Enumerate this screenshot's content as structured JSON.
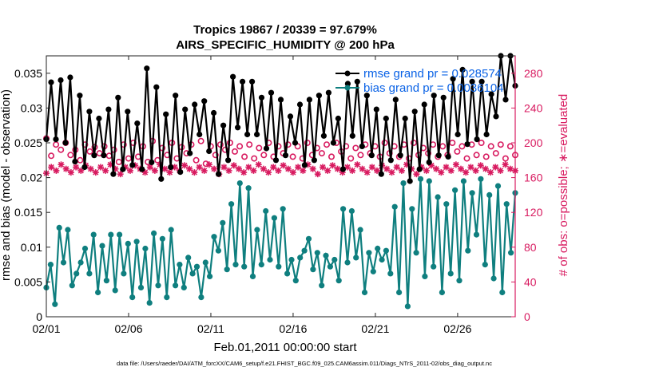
{
  "chart_data": {
    "type": "line",
    "title_line1": "Tropics 19867 / 20339 = 97.679%",
    "title_line2": "AIRS_SPECIFIC_HUMIDITY @ 200 hPa",
    "xlabel": "Feb.01,2011 00:00:00 start",
    "ylabel": "rmse and bias (model - observation)",
    "ylabel_right": "# of obs: o=possible; ∗=evaluated",
    "x_tick_labels": [
      "02/01",
      "02/06",
      "02/11",
      "02/16",
      "02/21",
      "02/26"
    ],
    "x_tick_days": [
      1,
      6,
      11,
      16,
      21,
      26
    ],
    "xlim": [
      1,
      29.5
    ],
    "ylim": [
      0,
      0.0375
    ],
    "y_ticks": [
      0,
      0.005,
      0.01,
      0.015,
      0.02,
      0.025,
      0.03,
      0.035
    ],
    "y_tick_labels": [
      "0",
      "0.005",
      "0.01",
      "0.015",
      "0.02",
      "0.025",
      "0.03",
      "0.035"
    ],
    "ylim_right": [
      0,
      300
    ],
    "y_ticks_right": [
      0,
      40,
      80,
      120,
      160,
      200,
      240,
      280
    ],
    "y_tick_labels_right": [
      "0",
      "40",
      "80",
      "120",
      "160",
      "200",
      "240",
      "280"
    ],
    "colors": {
      "rmse": "#000000",
      "bias": "#0f7f7f",
      "obs": "#d81b60",
      "legend_text": "#0b63e6"
    },
    "legend": [
      {
        "name": "rmse",
        "label": "rmse grand pr = 0.028574"
      },
      {
        "name": "bias",
        "label": "bias grand pr = 0.0036104"
      }
    ],
    "series": [
      {
        "name": "rmse",
        "values": [
          0.0255,
          0.0337,
          0.0255,
          0.034,
          0.025,
          0.0344,
          0.0223,
          0.0318,
          0.0215,
          0.0295,
          0.0232,
          0.0285,
          0.0232,
          0.0298,
          0.0205,
          0.0315,
          0.0212,
          0.0295,
          0.0218,
          0.0278,
          0.0212,
          0.0357,
          0.0222,
          0.033,
          0.0198,
          0.0291,
          0.0215,
          0.0318,
          0.0208,
          0.0298,
          0.0235,
          0.0305,
          0.0262,
          0.031,
          0.0238,
          0.0293,
          0.0205,
          0.0275,
          0.0225,
          0.0345,
          0.0272,
          0.0338,
          0.0262,
          0.0338,
          0.0262,
          0.0315,
          0.0242,
          0.0322,
          0.0225,
          0.0312,
          0.0232,
          0.0288,
          0.025,
          0.0305,
          0.0218,
          0.0312,
          0.0225,
          0.0318,
          0.026,
          0.0322,
          0.025,
          0.0285,
          0.0212,
          0.0335,
          0.026,
          0.0338,
          0.0245,
          0.0318,
          0.0232,
          0.0298,
          0.0205,
          0.0285,
          0.0225,
          0.0312,
          0.0232,
          0.0285,
          0.0195,
          0.0295,
          0.0212,
          0.0305,
          0.0222,
          0.0318,
          0.0232,
          0.0315,
          0.023,
          0.0342,
          0.0262,
          0.0355,
          0.0248,
          0.0338,
          0.0255,
          0.0338,
          0.0262,
          0.032,
          0.0288,
          0.0375,
          0.0312,
          0.0375,
          0.0332
        ]
      },
      {
        "name": "bias",
        "values": [
          0.0042,
          0.0075,
          0.0018,
          0.0128,
          0.0078,
          0.0125,
          0.0045,
          0.0062,
          0.0078,
          0.0098,
          0.0062,
          0.0118,
          0.0035,
          0.0102,
          0.0052,
          0.0118,
          0.0038,
          0.0118,
          0.0062,
          0.0105,
          0.0028,
          0.0108,
          0.0042,
          0.0098,
          0.002,
          0.012,
          0.0045,
          0.0112,
          0.0028,
          0.0125,
          0.0045,
          0.0075,
          0.0042,
          0.0085,
          0.0062,
          0.0072,
          0.0028,
          0.0078,
          0.0058,
          0.0115,
          0.0095,
          0.0135,
          0.0068,
          0.0162,
          0.0075,
          0.0192,
          0.0072,
          0.0185,
          0.0058,
          0.0125,
          0.0075,
          0.0152,
          0.0082,
          0.0142,
          0.0072,
          0.0155,
          0.0062,
          0.0082,
          0.0052,
          0.0085,
          0.0095,
          0.0112,
          0.0068,
          0.0092,
          0.0045,
          0.0088,
          0.0072,
          0.0082,
          0.0052,
          0.0155,
          0.0078,
          0.0152,
          0.0085,
          0.0125,
          0.0035,
          0.0092,
          0.0065,
          0.0098,
          0.0082,
          0.0095,
          0.0062,
          0.0158,
          0.0035,
          0.0192,
          0.0015,
          0.0155,
          0.0092,
          0.0198,
          0.0058,
          0.0195,
          0.0072,
          0.0172,
          0.0035,
          0.0162,
          0.0062,
          0.0182,
          0.0052,
          0.0195,
          0.0095,
          0.0178,
          0.0118,
          0.0198,
          0.0075,
          0.0175,
          0.0055,
          0.0188,
          0.0035,
          0.0162,
          0.0092,
          0.0178
        ]
      },
      {
        "name": "obs_possible",
        "values": [
          205,
          185,
          198,
          192,
          200,
          186,
          192,
          180,
          198,
          190,
          195,
          188,
          196,
          185,
          192,
          178,
          198,
          182,
          200,
          184,
          196,
          178,
          202,
          180,
          194,
          186,
          200,
          182,
          195,
          188,
          198,
          180,
          202,
          176,
          196,
          186,
          198,
          192,
          200,
          190,
          196,
          184,
          198,
          182,
          194,
          186,
          200,
          184,
          196,
          188,
          198,
          184,
          196,
          182,
          200,
          186,
          194,
          188,
          198,
          184,
          200,
          190,
          196,
          182,
          194,
          186,
          198,
          188,
          196,
          184,
          200,
          188,
          196,
          184,
          198,
          182,
          200,
          186,
          194,
          188,
          198,
          184,
          196,
          186,
          200,
          190,
          196,
          182,
          198,
          186,
          200,
          184,
          196,
          188,
          198,
          182,
          196,
          186
        ]
      },
      {
        "name": "obs_evaluated",
        "values": [
          165,
          172,
          168,
          175,
          170,
          166,
          172,
          168,
          174,
          170,
          166,
          172,
          168,
          175,
          170,
          164,
          172,
          168,
          174,
          170,
          166,
          172,
          168,
          175,
          170,
          166,
          172,
          168,
          174,
          170,
          166,
          172,
          168,
          175,
          170,
          164,
          172,
          168,
          174,
          170,
          166,
          172,
          168,
          175,
          170,
          166,
          172,
          168,
          174,
          170,
          166,
          172,
          168,
          175,
          170,
          164,
          172,
          168,
          174,
          170,
          166,
          172,
          168,
          175,
          170,
          166,
          172,
          168,
          174,
          170,
          166,
          172,
          168,
          175,
          170,
          164,
          172,
          168,
          174,
          170,
          166,
          172,
          168,
          175,
          170,
          166,
          172,
          168,
          174,
          170,
          166,
          172,
          168,
          175,
          170,
          168
        ]
      }
    ]
  },
  "footer": "data file: /Users/raeder/DAI/ATM_forcXX/CAM6_setup/f.e21.FHIST_BGC.f09_025.CAM6assim.011/Diags_NTrS_2011-02/obs_diag_output.nc"
}
